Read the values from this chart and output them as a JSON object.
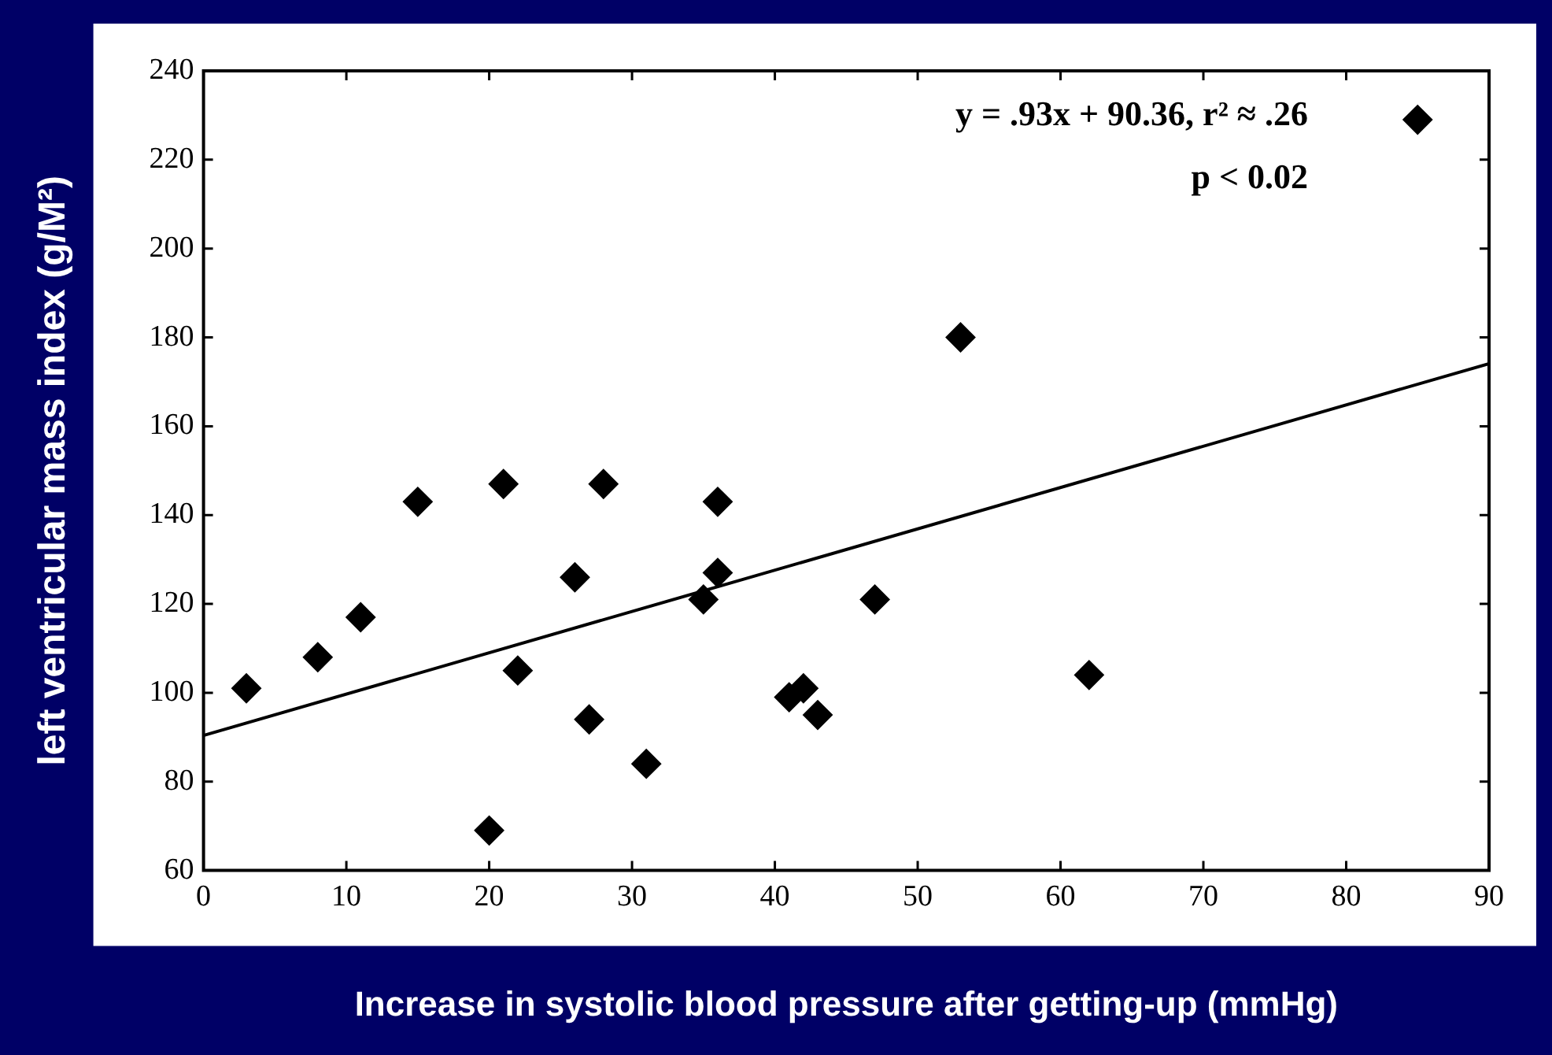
{
  "chart_data": {
    "type": "scatter",
    "xlabel": "Increase in systolic blood pressure after getting-up (mmHg)",
    "ylabel": "left ventricular mass index (g/M²)",
    "annotations": [
      "y = .93x + 90.36, r² ≈ .26",
      "p < 0.02"
    ],
    "xlim": [
      0,
      90
    ],
    "xticks": [
      0,
      10,
      20,
      30,
      40,
      50,
      60,
      70,
      80,
      90
    ],
    "ylim": [
      60,
      240
    ],
    "yticks": [
      60,
      80,
      100,
      120,
      140,
      160,
      180,
      200,
      220,
      240
    ],
    "grid": false,
    "legend": false,
    "marker": "diamond",
    "series": [
      {
        "color": "#000000",
        "x": [
          3,
          8,
          11,
          15,
          20,
          21,
          22,
          26,
          27,
          28,
          31,
          35,
          36,
          36,
          41,
          42,
          43,
          47,
          53,
          62,
          85
        ],
        "values": [
          101,
          108,
          117,
          143,
          69,
          147,
          105,
          126,
          94,
          147,
          84,
          121,
          127,
          143,
          99,
          101,
          95,
          121,
          180,
          104,
          229
        ]
      },
      {
        "type": "line",
        "color": "#000000",
        "line_style": "solid",
        "marker": "none",
        "x": [
          0,
          90
        ],
        "values": [
          90.4,
          174.1
        ]
      }
    ]
  }
}
